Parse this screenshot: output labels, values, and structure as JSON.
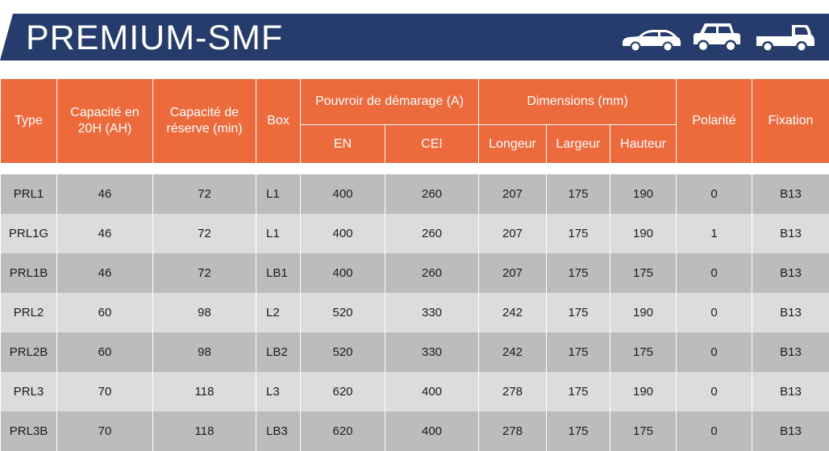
{
  "banner": {
    "title": "PREMIUM-SMF",
    "colors": {
      "navy": "#263c6c",
      "orange": "#ec6a3c"
    },
    "icons": [
      "car-icon",
      "suv-icon",
      "pickup-truck-icon"
    ]
  },
  "table": {
    "headers": {
      "type": "Type",
      "capacity": "Capacité en 20H (AH)",
      "reserve": "Capacité de réserve (min)",
      "box": "Box",
      "starting_power": "Pouvroir de démarage (A)",
      "en": "EN",
      "cei": "CEI",
      "dimensions": "Dimensions (mm)",
      "length": "Longeur",
      "width": "Largeur",
      "height": "Hauteur",
      "polarity": "Polarité",
      "fixation": "Fixation"
    },
    "rows": [
      [
        "PRL1",
        "46",
        "72",
        "L1",
        "400",
        "260",
        "207",
        "175",
        "190",
        "0",
        "B13"
      ],
      [
        "PRL1G",
        "46",
        "72",
        "L1",
        "400",
        "260",
        "207",
        "175",
        "190",
        "1",
        "B13"
      ],
      [
        "PRL1B",
        "46",
        "72",
        "LB1",
        "400",
        "260",
        "207",
        "175",
        "175",
        "0",
        "B13"
      ],
      [
        "PRL2",
        "60",
        "98",
        "L2",
        "520",
        "330",
        "242",
        "175",
        "190",
        "0",
        "B13"
      ],
      [
        "PRL2B",
        "60",
        "98",
        "LB2",
        "520",
        "330",
        "242",
        "175",
        "175",
        "0",
        "B13"
      ],
      [
        "PRL3",
        "70",
        "118",
        "L3",
        "620",
        "400",
        "278",
        "175",
        "190",
        "0",
        "B13"
      ],
      [
        "PRL3B",
        "70",
        "118",
        "LB3",
        "620",
        "400",
        "278",
        "175",
        "175",
        "0",
        "B13"
      ]
    ]
  }
}
